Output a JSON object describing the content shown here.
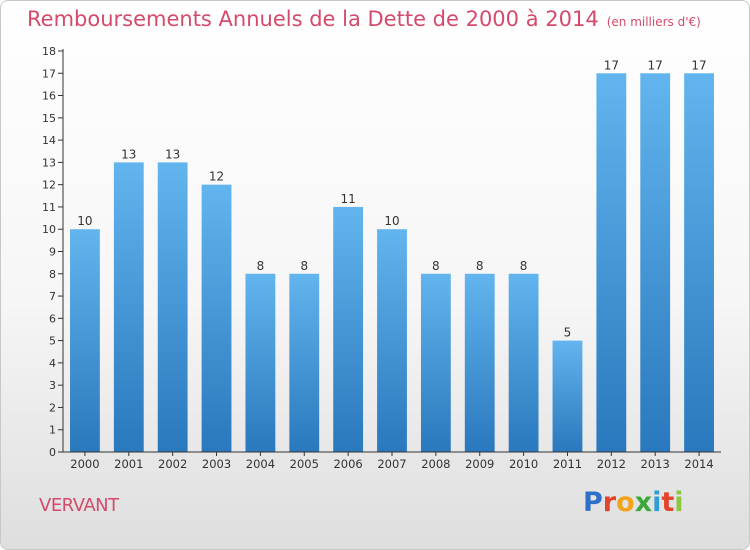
{
  "colors": {
    "title": "#d54a6a",
    "bar_light": "#5eb0ea",
    "bar_dark": "#2c7bc0",
    "axis": "#333333"
  },
  "header": {
    "title": "Remboursements Annuels de la Dette de 2000 à 2014",
    "unit": "(en milliers d'€)"
  },
  "footer": {
    "commune": "VERVANT",
    "logo_letters": [
      "P",
      "r",
      "o",
      "x",
      "i",
      "t",
      "i"
    ],
    "logo_colors": [
      "#2e6fc9",
      "#e3432a",
      "#f1a31a",
      "#3aa83a",
      "#2e9fd6",
      "#e3432a",
      "#8dc63f"
    ]
  },
  "chart_data": {
    "type": "bar",
    "title": "Remboursements Annuels de la Dette de 2000 à 2014",
    "xlabel": "",
    "ylabel": "en milliers d'€",
    "ylim": [
      0,
      18
    ],
    "yticks": [
      0,
      1,
      2,
      3,
      4,
      5,
      6,
      7,
      8,
      9,
      10,
      11,
      12,
      13,
      14,
      15,
      16,
      17,
      18
    ],
    "categories": [
      "2000",
      "2001",
      "2002",
      "2003",
      "2004",
      "2005",
      "2006",
      "2007",
      "2008",
      "2009",
      "2010",
      "2011",
      "2012",
      "2013",
      "2014"
    ],
    "values": [
      10,
      13,
      13,
      12,
      8,
      8,
      11,
      10,
      8,
      8,
      8,
      5,
      17,
      17,
      17
    ],
    "grid": false,
    "legend": "none"
  }
}
